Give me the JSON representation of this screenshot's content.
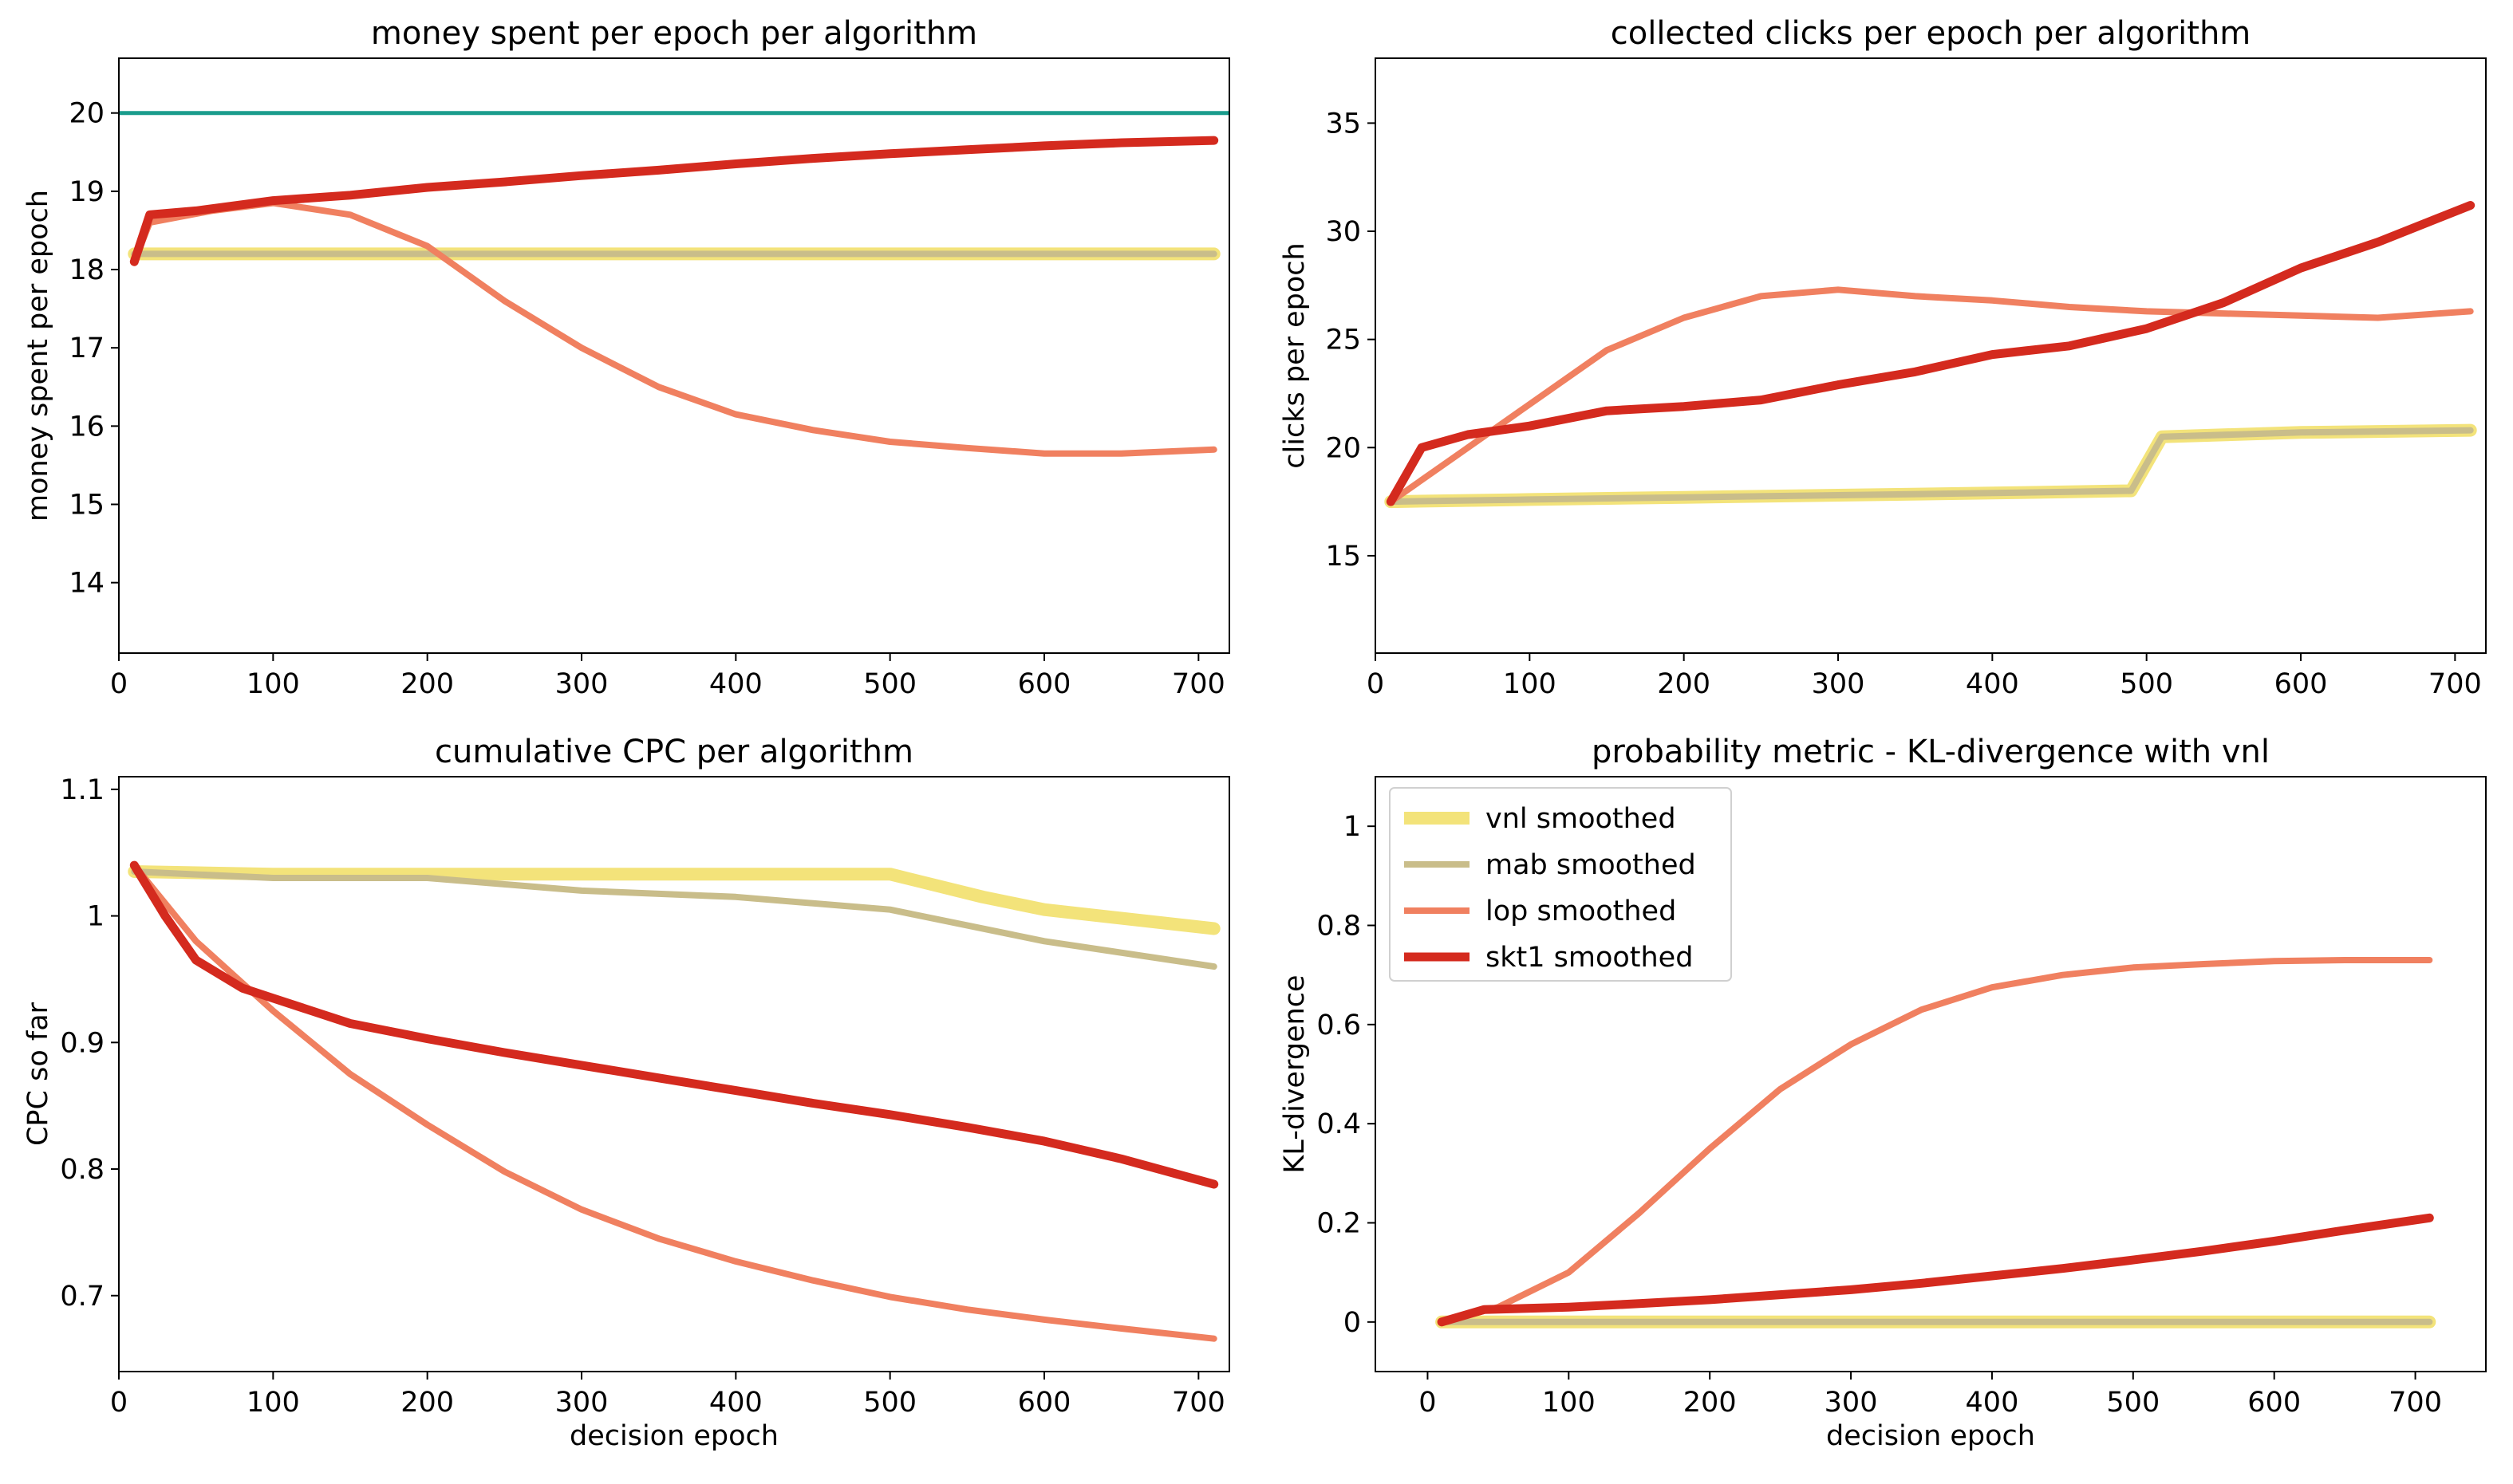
{
  "chart_data": [
    {
      "type": "line",
      "title": "money spent per epoch per algorithm",
      "xlabel": "",
      "ylabel": "money spent per epoch",
      "xlim": [
        0,
        720
      ],
      "ylim": [
        13.1,
        20.7
      ],
      "xticks": [
        0,
        100,
        200,
        300,
        400,
        500,
        600,
        700
      ],
      "yticks": [
        14,
        15,
        16,
        17,
        18,
        19,
        20
      ],
      "grid": false,
      "hlines": [
        {
          "y": 20,
          "color": "#1a9c8c"
        }
      ],
      "series": [
        {
          "name": "vnl smoothed",
          "color": "#f3e37a",
          "x": [
            10,
            100,
            200,
            300,
            400,
            500,
            600,
            710
          ],
          "y": [
            18.2,
            18.2,
            18.2,
            18.2,
            18.2,
            18.2,
            18.2,
            18.2
          ]
        },
        {
          "name": "mab smoothed",
          "color": "#c9bd8a",
          "x": [
            10,
            100,
            200,
            300,
            400,
            500,
            600,
            710
          ],
          "y": [
            18.2,
            18.2,
            18.2,
            18.2,
            18.2,
            18.2,
            18.2,
            18.2
          ]
        },
        {
          "name": "lop smoothed",
          "color": "#f08060",
          "x": [
            10,
            20,
            60,
            100,
            150,
            200,
            250,
            300,
            350,
            400,
            450,
            500,
            550,
            600,
            650,
            710
          ],
          "y": [
            18.1,
            18.6,
            18.75,
            18.85,
            18.7,
            18.3,
            17.6,
            17.0,
            16.5,
            16.15,
            15.95,
            15.8,
            15.72,
            15.65,
            15.65,
            15.7
          ]
        },
        {
          "name": "skt1 smoothed",
          "color": "#d42a1e",
          "x": [
            10,
            20,
            50,
            100,
            150,
            200,
            250,
            300,
            350,
            400,
            450,
            500,
            550,
            600,
            650,
            710
          ],
          "y": [
            18.1,
            18.7,
            18.75,
            18.88,
            18.95,
            19.05,
            19.12,
            19.2,
            19.27,
            19.35,
            19.42,
            19.48,
            19.53,
            19.58,
            19.62,
            19.65
          ]
        }
      ]
    },
    {
      "type": "line",
      "title": "collected clicks per epoch per algorithm",
      "xlabel": "",
      "ylabel": "clicks per epoch",
      "xlim": [
        0,
        720
      ],
      "ylim": [
        10.5,
        38
      ],
      "xticks": [
        0,
        100,
        200,
        300,
        400,
        500,
        600,
        700
      ],
      "yticks": [
        15,
        20,
        25,
        30,
        35
      ],
      "grid": false,
      "series": [
        {
          "name": "vnl smoothed",
          "color": "#f3e37a",
          "x": [
            10,
            100,
            200,
            300,
            400,
            490,
            510,
            600,
            710
          ],
          "y": [
            17.5,
            17.6,
            17.7,
            17.8,
            17.9,
            18.0,
            20.5,
            20.7,
            20.8
          ]
        },
        {
          "name": "mab smoothed",
          "color": "#c9bd8a",
          "x": [
            10,
            100,
            200,
            300,
            400,
            490,
            510,
            600,
            710
          ],
          "y": [
            17.5,
            17.6,
            17.7,
            17.8,
            17.9,
            18.0,
            20.5,
            20.7,
            20.8
          ]
        },
        {
          "name": "lop smoothed",
          "color": "#f08060",
          "x": [
            10,
            50,
            100,
            150,
            200,
            250,
            300,
            350,
            400,
            450,
            500,
            550,
            600,
            650,
            710
          ],
          "y": [
            17.5,
            19.5,
            22.0,
            24.5,
            26.0,
            27.0,
            27.3,
            27.0,
            26.8,
            26.5,
            26.3,
            26.2,
            26.1,
            26.0,
            26.3
          ]
        },
        {
          "name": "skt1 smoothed",
          "color": "#d42a1e",
          "x": [
            10,
            30,
            60,
            100,
            150,
            200,
            250,
            300,
            350,
            400,
            450,
            500,
            550,
            600,
            650,
            710
          ],
          "y": [
            17.5,
            20.0,
            20.6,
            21.0,
            21.7,
            21.9,
            22.2,
            22.9,
            23.5,
            24.3,
            24.7,
            25.5,
            26.7,
            28.3,
            29.5,
            31.2
          ]
        }
      ]
    },
    {
      "type": "line",
      "title": "cumulative CPC per algorithm",
      "xlabel": "decision epoch",
      "ylabel": "CPC so far",
      "xlim": [
        0,
        720
      ],
      "ylim": [
        0.64,
        1.11
      ],
      "xticks": [
        0,
        100,
        200,
        300,
        400,
        500,
        600,
        700
      ],
      "yticks": [
        0.7,
        0.8,
        0.9,
        1.0,
        1.1
      ],
      "grid": false,
      "series": [
        {
          "name": "vnl smoothed",
          "color": "#f3e37a",
          "x": [
            10,
            100,
            200,
            300,
            400,
            500,
            560,
            600,
            710
          ],
          "y": [
            1.035,
            1.033,
            1.033,
            1.033,
            1.033,
            1.033,
            1.015,
            1.005,
            0.99
          ]
        },
        {
          "name": "mab smoothed",
          "color": "#c9bd8a",
          "x": [
            10,
            100,
            200,
            300,
            400,
            500,
            600,
            710
          ],
          "y": [
            1.035,
            1.03,
            1.03,
            1.02,
            1.015,
            1.005,
            0.98,
            0.96
          ]
        },
        {
          "name": "lop smoothed",
          "color": "#f08060",
          "x": [
            10,
            50,
            100,
            150,
            200,
            250,
            300,
            350,
            400,
            450,
            500,
            550,
            600,
            650,
            710
          ],
          "y": [
            1.04,
            0.98,
            0.925,
            0.875,
            0.835,
            0.798,
            0.768,
            0.745,
            0.727,
            0.712,
            0.699,
            0.689,
            0.681,
            0.674,
            0.666
          ]
        },
        {
          "name": "skt1 smoothed",
          "color": "#d42a1e",
          "x": [
            10,
            30,
            50,
            80,
            100,
            150,
            200,
            250,
            300,
            350,
            400,
            450,
            500,
            550,
            600,
            650,
            710
          ],
          "y": [
            1.04,
            1.0,
            0.965,
            0.943,
            0.935,
            0.915,
            0.903,
            0.892,
            0.882,
            0.872,
            0.862,
            0.852,
            0.843,
            0.833,
            0.822,
            0.808,
            0.788
          ]
        }
      ]
    },
    {
      "type": "line",
      "title": "probability metric - KL-divergence with vnl",
      "xlabel": "decision epoch",
      "ylabel": "KL-divergence",
      "xlim": [
        -37,
        750
      ],
      "ylim": [
        -0.1,
        1.1
      ],
      "xticks": [
        0,
        100,
        200,
        300,
        400,
        500,
        600,
        700
      ],
      "yticks": [
        0.0,
        0.2,
        0.4,
        0.6,
        0.8,
        1.0
      ],
      "grid": false,
      "legend": {
        "placement": "top-left"
      },
      "series": [
        {
          "name": "vnl smoothed",
          "color": "#f3e37a",
          "x": [
            10,
            710
          ],
          "y": [
            0.0,
            0.0
          ]
        },
        {
          "name": "mab smoothed",
          "color": "#c9bd8a",
          "x": [
            10,
            710
          ],
          "y": [
            0.0,
            0.0
          ]
        },
        {
          "name": "lop smoothed",
          "color": "#f08060",
          "x": [
            10,
            50,
            100,
            150,
            200,
            250,
            300,
            350,
            400,
            450,
            500,
            550,
            600,
            650,
            710
          ],
          "y": [
            0.0,
            0.03,
            0.1,
            0.22,
            0.35,
            0.47,
            0.56,
            0.63,
            0.675,
            0.7,
            0.715,
            0.722,
            0.728,
            0.73,
            0.73
          ]
        },
        {
          "name": "skt1 smoothed",
          "color": "#d42a1e",
          "x": [
            10,
            40,
            100,
            150,
            200,
            250,
            300,
            350,
            400,
            450,
            500,
            550,
            600,
            650,
            710
          ],
          "y": [
            0.0,
            0.025,
            0.03,
            0.037,
            0.045,
            0.055,
            0.065,
            0.078,
            0.093,
            0.108,
            0.125,
            0.143,
            0.163,
            0.185,
            0.21
          ]
        }
      ]
    }
  ]
}
